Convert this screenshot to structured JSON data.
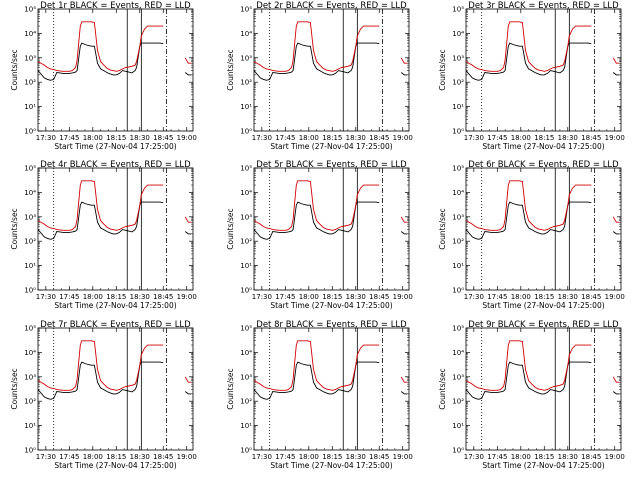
{
  "chart_data": [
    {
      "type": "line",
      "title": "Det 1r BLACK = Events, RED = LLD"
    },
    {
      "type": "line",
      "title": "Det 2r BLACK = Events, RED = LLD"
    },
    {
      "type": "line",
      "title": "Det 3r BLACK = Events, RED = LLD"
    },
    {
      "type": "line",
      "title": "Det 4r BLACK = Events, RED = LLD"
    },
    {
      "type": "line",
      "title": "Det 5r BLACK = Events, RED = LLD"
    },
    {
      "type": "line",
      "title": "Det 6r BLACK = Events, RED = LLD"
    },
    {
      "type": "line",
      "title": "Det 7r BLACK = Events, RED = LLD"
    },
    {
      "type": "line",
      "title": "Det 8r BLACK = Events, RED = LLD"
    },
    {
      "type": "line",
      "title": "Det 9r BLACK = Events, RED = LLD"
    }
  ],
  "shared": {
    "xlabel": "Start Time (27-Nov-04 17:25:00)",
    "ylabel": "Counts/sec",
    "y_scale": "log",
    "ylim": [
      1,
      100000
    ],
    "y_ticks": [
      1,
      10,
      100,
      1000,
      10000,
      100000
    ],
    "y_tick_labels": [
      "10⁰",
      "10¹",
      "10²",
      "10³",
      "10⁴",
      "10⁵"
    ],
    "x_ticks": [
      "17:30",
      "17:45",
      "18:00",
      "18:15",
      "18:30",
      "18:45",
      "19:00"
    ],
    "x_tick_minutes": [
      5,
      20,
      35,
      50,
      65,
      80,
      95
    ],
    "xlim_minutes": [
      0,
      99
    ],
    "colors": {
      "events": "#000000",
      "lld": "#d00000"
    },
    "series": [
      {
        "role": "events",
        "color": "#000000",
        "x": [
          0,
          4,
          6,
          8,
          10,
          12,
          14,
          16,
          18,
          20,
          22,
          24,
          25,
          27,
          28,
          30,
          32,
          34,
          36,
          38,
          40,
          42,
          44,
          46,
          48,
          50,
          52,
          54,
          56,
          58,
          60,
          62,
          63,
          65,
          66,
          68,
          70,
          72,
          74,
          76,
          78,
          80,
          81,
          82,
          84,
          86,
          88,
          90,
          92,
          94,
          96,
          98
        ],
        "y": [
          300,
          150,
          130,
          120,
          130,
          250,
          240,
          230,
          230,
          230,
          240,
          260,
          300,
          3000,
          4000,
          3500,
          3200,
          3000,
          3000,
          600,
          350,
          300,
          250,
          220,
          200,
          200,
          230,
          300,
          280,
          260,
          240,
          300,
          400,
          3000,
          4000,
          4000,
          4000,
          4000,
          4000,
          4000,
          4000,
          3800,
          null,
          null,
          null,
          null,
          null,
          null,
          null,
          250,
          200,
          200
        ]
      },
      {
        "role": "lld",
        "color": "#d00000",
        "x": [
          0,
          4,
          6,
          8,
          10,
          12,
          14,
          16,
          18,
          20,
          22,
          24,
          25,
          27,
          28,
          30,
          32,
          34,
          36,
          38,
          40,
          42,
          44,
          46,
          48,
          50,
          52,
          54,
          56,
          58,
          60,
          62,
          63,
          65,
          66,
          68,
          70,
          72,
          74,
          76,
          78,
          80,
          81,
          82,
          84,
          86,
          88,
          90,
          92,
          94,
          96,
          98
        ],
        "y": [
          700,
          500,
          400,
          350,
          330,
          300,
          290,
          280,
          280,
          280,
          300,
          400,
          800,
          20000,
          30000,
          30000,
          30000,
          30000,
          28000,
          2000,
          700,
          500,
          380,
          320,
          300,
          280,
          300,
          350,
          400,
          420,
          450,
          500,
          700,
          3000,
          8000,
          15000,
          20000,
          20000,
          20000,
          20000,
          20000,
          20000,
          null,
          null,
          null,
          null,
          null,
          null,
          null,
          1000,
          600,
          600
        ]
      }
    ],
    "vertical_markers": [
      {
        "minute": 10,
        "style": "dotted"
      },
      {
        "minute": 57,
        "style": "solid"
      },
      {
        "minute": 66,
        "style": "solid"
      },
      {
        "minute": 82,
        "style": "dashdot"
      }
    ]
  }
}
